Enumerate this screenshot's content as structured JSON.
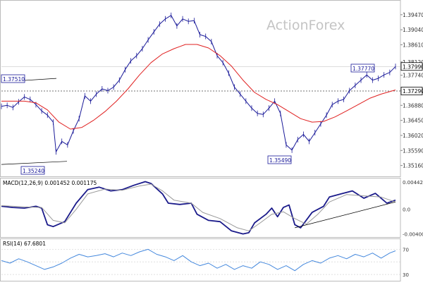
{
  "watermark": "ActionForex",
  "chart_data": [
    {
      "type": "candlestick",
      "panel": "price",
      "ylim": [
        1.3485,
        1.3985
      ],
      "y_ticks": [
        "1.39470",
        "1.39040",
        "1.38610",
        "1.38120",
        "1.37740",
        "1.37310",
        "1.36880",
        "1.36450",
        "1.36020",
        "1.35590",
        "1.35160"
      ],
      "current_price_label": "1.37990",
      "horizontal_line_label": "1.37290",
      "annotations": [
        "1.37510",
        "1.35240",
        "1.35490",
        "1.37770"
      ],
      "series": [
        {
          "kind": "price",
          "color": "#1a1a99",
          "points": [
            [
              0,
              1.3685
            ],
            [
              2,
              1.3688
            ],
            [
              4,
              1.3682
            ],
            [
              6,
              1.3698
            ],
            [
              8,
              1.3712
            ],
            [
              10,
              1.3705
            ],
            [
              12,
              1.369
            ],
            [
              14,
              1.3672
            ],
            [
              16,
              1.366
            ],
            [
              18,
              1.364
            ],
            [
              19,
              1.3555
            ],
            [
              21,
              1.3585
            ],
            [
              23,
              1.3575
            ],
            [
              25,
              1.3615
            ],
            [
              27,
              1.365
            ],
            [
              29,
              1.3715
            ],
            [
              31,
              1.37
            ],
            [
              33,
              1.372
            ],
            [
              35,
              1.3735
            ],
            [
              37,
              1.373
            ],
            [
              39,
              1.374
            ],
            [
              41,
              1.376
            ],
            [
              43,
              1.379
            ],
            [
              45,
              1.3815
            ],
            [
              47,
              1.383
            ],
            [
              49,
              1.385
            ],
            [
              51,
              1.3875
            ],
            [
              53,
              1.3898
            ],
            [
              55,
              1.392
            ],
            [
              57,
              1.3935
            ],
            [
              59,
              1.3945
            ],
            [
              61,
              1.3915
            ],
            [
              63,
              1.3935
            ],
            [
              65,
              1.3928
            ],
            [
              67,
              1.393
            ],
            [
              69,
              1.389
            ],
            [
              71,
              1.3885
            ],
            [
              73,
              1.387
            ],
            [
              75,
              1.383
            ],
            [
              77,
              1.381
            ],
            [
              79,
              1.378
            ],
            [
              81,
              1.374
            ],
            [
              83,
              1.372
            ],
            [
              85,
              1.37
            ],
            [
              87,
              1.368
            ],
            [
              89,
              1.3665
            ],
            [
              91,
              1.3662
            ],
            [
              93,
              1.368
            ],
            [
              95,
              1.37
            ],
            [
              97,
              1.3665
            ],
            [
              99,
              1.3575
            ],
            [
              101,
              1.356
            ],
            [
              103,
              1.359
            ],
            [
              105,
              1.3605
            ],
            [
              107,
              1.3585
            ],
            [
              109,
              1.361
            ],
            [
              111,
              1.3635
            ],
            [
              113,
              1.366
            ],
            [
              115,
              1.369
            ],
            [
              117,
              1.37
            ],
            [
              119,
              1.3705
            ],
            [
              121,
              1.373
            ],
            [
              123,
              1.3745
            ],
            [
              125,
              1.376
            ],
            [
              127,
              1.3775
            ],
            [
              129,
              1.376
            ],
            [
              131,
              1.3765
            ],
            [
              133,
              1.3775
            ],
            [
              135,
              1.3782
            ],
            [
              137,
              1.3799
            ]
          ]
        },
        {
          "kind": "moving_average",
          "color": "#e02020",
          "points": [
            [
              0,
              1.37
            ],
            [
              4,
              1.37
            ],
            [
              8,
              1.37
            ],
            [
              12,
              1.3695
            ],
            [
              16,
              1.3675
            ],
            [
              20,
              1.364
            ],
            [
              24,
              1.362
            ],
            [
              28,
              1.3625
            ],
            [
              32,
              1.3645
            ],
            [
              36,
              1.367
            ],
            [
              40,
              1.37
            ],
            [
              44,
              1.3735
            ],
            [
              48,
              1.3775
            ],
            [
              52,
              1.381
            ],
            [
              56,
              1.3835
            ],
            [
              60,
              1.385
            ],
            [
              64,
              1.3862
            ],
            [
              68,
              1.3862
            ],
            [
              72,
              1.3852
            ],
            [
              76,
              1.383
            ],
            [
              80,
              1.38
            ],
            [
              84,
              1.376
            ],
            [
              88,
              1.3725
            ],
            [
              92,
              1.3705
            ],
            [
              96,
              1.369
            ],
            [
              100,
              1.367
            ],
            [
              104,
              1.365
            ],
            [
              108,
              1.364
            ],
            [
              112,
              1.3642
            ],
            [
              116,
              1.3655
            ],
            [
              120,
              1.3672
            ],
            [
              124,
              1.369
            ],
            [
              128,
              1.3708
            ],
            [
              132,
              1.372
            ],
            [
              137,
              1.3732
            ]
          ]
        }
      ]
    },
    {
      "type": "line",
      "panel": "macd",
      "title": "MACD(12,26,9) 0.001452 0.001175",
      "ylim": [
        -0.0045,
        0.0049
      ],
      "y_ticks": [
        "0.004421",
        "0.0",
        "-0.004001"
      ],
      "series": [
        {
          "kind": "macd",
          "color": "#1a1a8a",
          "points": [
            [
              0,
              0.0005
            ],
            [
              4,
              0.0003
            ],
            [
              8,
              0.0002
            ],
            [
              12,
              0.0005
            ],
            [
              14,
              0.0002
            ],
            [
              16,
              -0.0025
            ],
            [
              18,
              -0.0028
            ],
            [
              22,
              -0.002
            ],
            [
              26,
              0.001
            ],
            [
              30,
              0.0032
            ],
            [
              34,
              0.0036
            ],
            [
              38,
              0.003
            ],
            [
              42,
              0.0032
            ],
            [
              46,
              0.0039
            ],
            [
              50,
              0.0045
            ],
            [
              52,
              0.0042
            ],
            [
              56,
              0.0025
            ],
            [
              58,
              0.001
            ],
            [
              62,
              0.0008
            ],
            [
              66,
              0.001
            ],
            [
              68,
              -0.0008
            ],
            [
              72,
              -0.0018
            ],
            [
              76,
              -0.002
            ],
            [
              80,
              -0.0035
            ],
            [
              84,
              -0.004
            ],
            [
              86,
              -0.0038
            ],
            [
              88,
              -0.0022
            ],
            [
              92,
              -0.0008
            ],
            [
              94,
              0.0002
            ],
            [
              96,
              -0.0012
            ],
            [
              98,
              0.0003
            ],
            [
              100,
              0.0007
            ],
            [
              102,
              -0.0025
            ],
            [
              104,
              -0.003
            ],
            [
              108,
              -0.0005
            ],
            [
              112,
              0.0005
            ],
            [
              114,
              0.002
            ],
            [
              118,
              0.0025
            ],
            [
              122,
              0.003
            ],
            [
              126,
              0.0018
            ],
            [
              130,
              0.0026
            ],
            [
              134,
              0.001
            ],
            [
              137,
              0.0015
            ]
          ]
        },
        {
          "kind": "signal",
          "color": "#999999",
          "points": [
            [
              0,
              0.0006
            ],
            [
              8,
              0.0004
            ],
            [
              14,
              0.0003
            ],
            [
              18,
              -0.0018
            ],
            [
              22,
              -0.0022
            ],
            [
              26,
              0.0
            ],
            [
              30,
              0.0025
            ],
            [
              36,
              0.0033
            ],
            [
              42,
              0.0031
            ],
            [
              48,
              0.0038
            ],
            [
              52,
              0.0041
            ],
            [
              56,
              0.003
            ],
            [
              60,
              0.0015
            ],
            [
              66,
              0.001
            ],
            [
              70,
              -0.0005
            ],
            [
              76,
              -0.0015
            ],
            [
              82,
              -0.003
            ],
            [
              86,
              -0.0035
            ],
            [
              90,
              -0.0022
            ],
            [
              94,
              -0.0008
            ],
            [
              98,
              -0.0004
            ],
            [
              102,
              -0.0015
            ],
            [
              106,
              -0.0024
            ],
            [
              110,
              -0.0008
            ],
            [
              114,
              0.0012
            ],
            [
              120,
              0.0024
            ],
            [
              126,
              0.0022
            ],
            [
              132,
              0.002
            ],
            [
              137,
              0.0012
            ]
          ]
        },
        {
          "kind": "trendline",
          "color": "#000000",
          "points": [
            [
              102,
              -0.003
            ],
            [
              137,
              0.0012
            ]
          ]
        }
      ]
    },
    {
      "type": "line",
      "panel": "rsi",
      "title": "RSI(14) 67.6801",
      "ylim": [
        20,
        85
      ],
      "y_ticks": [
        "70",
        "30"
      ],
      "series": [
        {
          "kind": "rsi",
          "color": "#4488dd",
          "points": [
            [
              0,
              52
            ],
            [
              3,
              48
            ],
            [
              6,
              55
            ],
            [
              9,
              50
            ],
            [
              12,
              44
            ],
            [
              15,
              38
            ],
            [
              18,
              42
            ],
            [
              21,
              48
            ],
            [
              24,
              56
            ],
            [
              27,
              62
            ],
            [
              30,
              58
            ],
            [
              33,
              60
            ],
            [
              36,
              63
            ],
            [
              39,
              58
            ],
            [
              42,
              64
            ],
            [
              45,
              60
            ],
            [
              48,
              66
            ],
            [
              51,
              70
            ],
            [
              54,
              62
            ],
            [
              57,
              58
            ],
            [
              60,
              52
            ],
            [
              63,
              60
            ],
            [
              66,
              50
            ],
            [
              69,
              44
            ],
            [
              72,
              48
            ],
            [
              75,
              40
            ],
            [
              78,
              46
            ],
            [
              81,
              38
            ],
            [
              84,
              44
            ],
            [
              87,
              40
            ],
            [
              90,
              50
            ],
            [
              93,
              46
            ],
            [
              96,
              38
            ],
            [
              99,
              44
            ],
            [
              102,
              36
            ],
            [
              105,
              46
            ],
            [
              108,
              52
            ],
            [
              111,
              48
            ],
            [
              114,
              56
            ],
            [
              117,
              60
            ],
            [
              120,
              55
            ],
            [
              123,
              62
            ],
            [
              126,
              58
            ],
            [
              129,
              64
            ],
            [
              132,
              56
            ],
            [
              135,
              64
            ],
            [
              137,
              67.68
            ]
          ]
        }
      ]
    }
  ]
}
